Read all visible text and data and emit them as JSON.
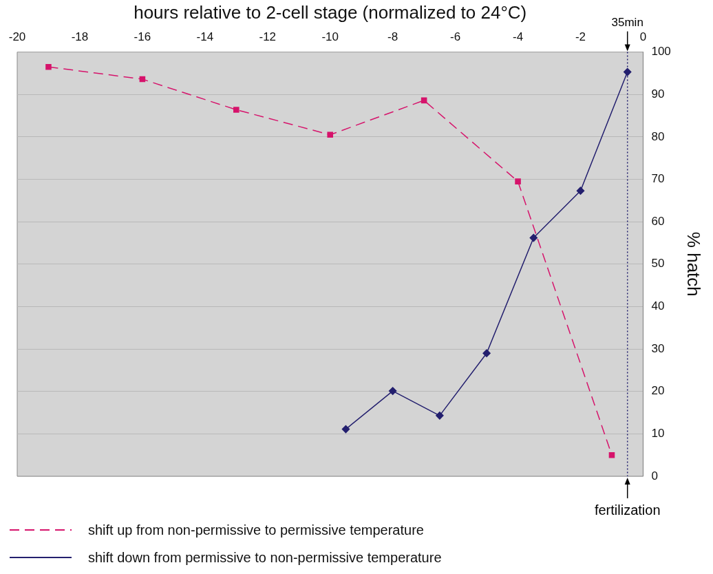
{
  "chart_data": {
    "type": "line",
    "xlabel": "hours relative to 2-cell stage (normalized to 24°C)",
    "ylabel": "% hatch",
    "xlim": [
      -20,
      0
    ],
    "xticks": [
      -20,
      -18,
      -16,
      -14,
      -12,
      -10,
      -8,
      -6,
      -4,
      -2,
      0
    ],
    "ylim": [
      0,
      100
    ],
    "yticks": [
      0,
      10,
      20,
      30,
      40,
      50,
      60,
      70,
      80,
      90,
      100
    ],
    "grid": "y",
    "legend": "bottom",
    "series": [
      {
        "name": "shift up from non-permissive to permissive temperature",
        "color": "#d6136b",
        "marker": "square",
        "line_style": "dashed",
        "x": [
          -19,
          -16,
          -13,
          -10,
          -7,
          -4,
          -1
        ],
        "values": [
          96.5,
          93.6,
          86.4,
          80.5,
          88.6,
          69.5,
          5
        ]
      },
      {
        "name": "shift down from permissive to non-permissive temperature",
        "color": "#231f6e",
        "marker": "diamond",
        "line_style": "solid",
        "x": [
          -9.5,
          -8,
          -6.5,
          -5,
          -3.5,
          -2,
          -0.5
        ],
        "values": [
          11.1,
          20.1,
          14.3,
          29,
          56.2,
          67.3,
          95.3
        ]
      }
    ],
    "ref_lines": [
      {
        "axis": "x",
        "value": -0.5,
        "label": "fertilization",
        "color": "#231f6e",
        "line_style": "dotted"
      }
    ],
    "annotations": [
      {
        "text": "35min",
        "x": -0.5,
        "y": 100
      }
    ]
  }
}
